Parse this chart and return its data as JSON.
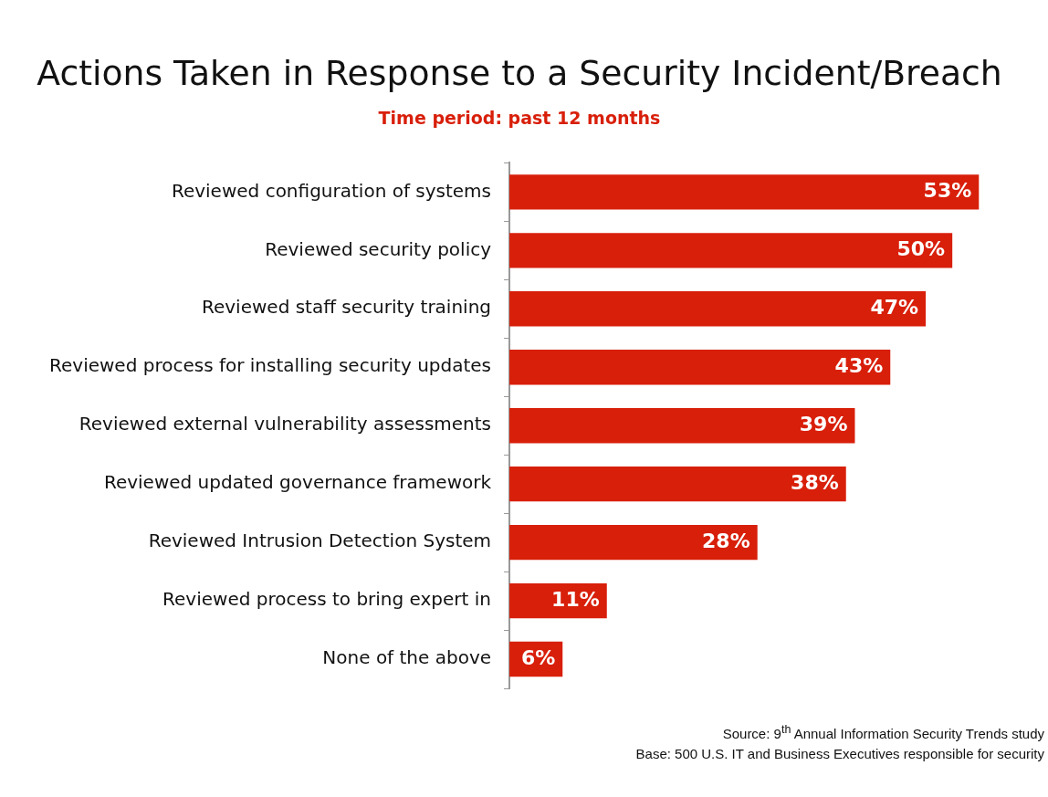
{
  "chart_data": {
    "type": "bar",
    "orientation": "horizontal",
    "title": "Actions Taken in Response to a Security Incident/Breach",
    "subtitle": "Time period: past 12 months",
    "categories": [
      "Reviewed configuration of systems",
      "Reviewed security policy",
      "Reviewed staff security training",
      "Reviewed process for installing security updates",
      "Reviewed external vulnerability assessments",
      "Reviewed updated governance framework",
      "Reviewed Intrusion Detection System",
      "Reviewed process to bring expert in",
      "None of the above"
    ],
    "values": [
      53,
      50,
      47,
      43,
      39,
      38,
      28,
      11,
      6
    ],
    "value_labels": [
      "53%",
      "50%",
      "47%",
      "43%",
      "39%",
      "38%",
      "28%",
      "11%",
      "6%"
    ],
    "color": "#d81f0a",
    "legend": false,
    "annotations": [
      "Source: 9$^{th}$ Annual Information Security Trends study",
      "Base: 500 U.S. IT and Business Executives responsible for security"
    ]
  }
}
